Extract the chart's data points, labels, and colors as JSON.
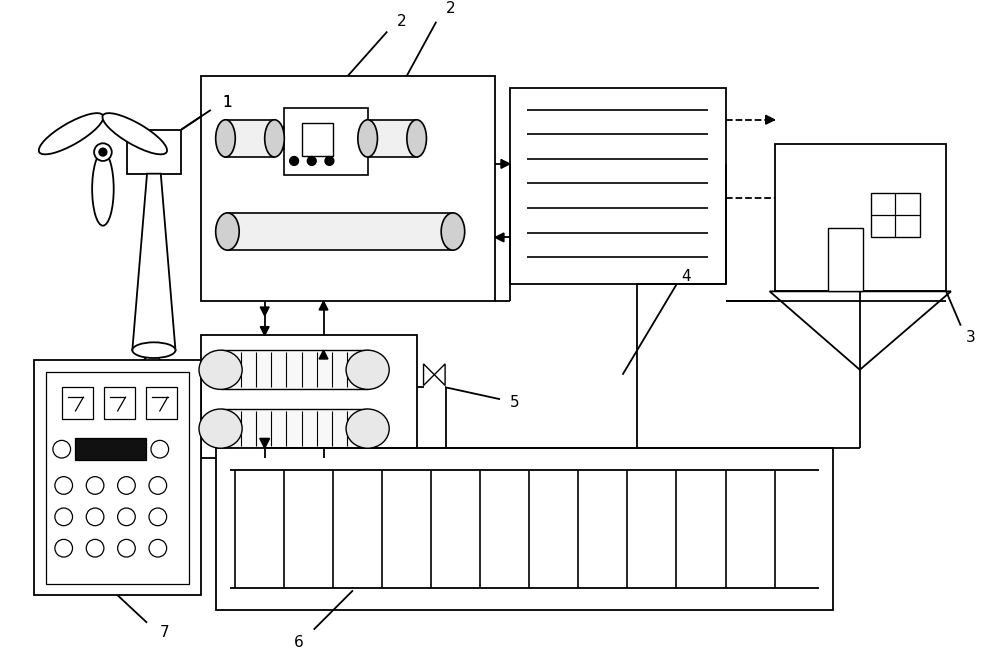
{
  "bg_color": "#ffffff",
  "line_color": "#000000",
  "label_1": "1",
  "label_2": "2",
  "label_3": "3",
  "label_4": "4",
  "label_5": "5",
  "label_6": "6",
  "label_7": "7"
}
